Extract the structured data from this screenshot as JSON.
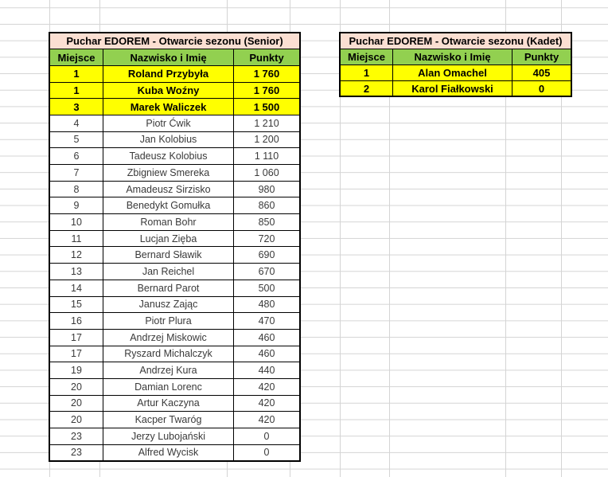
{
  "colors": {
    "title_bg": "#fbdfd2",
    "header_bg": "#92d050",
    "highlight_bg": "#ffff00",
    "border_color": "#000000",
    "gridline_color": "#d4d4d4",
    "text_normal": "#3a3a3a",
    "text_bold": "#000000"
  },
  "tables": [
    {
      "id": "senior",
      "title": "Puchar EDOREM - Otwarcie sezonu (Senior)",
      "columns": [
        "Miejsce",
        "Nazwisko i Imię",
        "Punkty"
      ],
      "rows": [
        {
          "place": "1",
          "name": "Roland Przybyła",
          "points": "1 760",
          "highlight": true
        },
        {
          "place": "1",
          "name": "Kuba Woźny",
          "points": "1 760",
          "highlight": true
        },
        {
          "place": "3",
          "name": "Marek Waliczek",
          "points": "1 500",
          "highlight": true
        },
        {
          "place": "4",
          "name": "Piotr Ćwik",
          "points": "1 210",
          "highlight": false
        },
        {
          "place": "5",
          "name": "Jan Kolobius",
          "points": "1 200",
          "highlight": false
        },
        {
          "place": "6",
          "name": "Tadeusz Kolobius",
          "points": "1 110",
          "highlight": false
        },
        {
          "place": "7",
          "name": "Zbigniew Smereka",
          "points": "1 060",
          "highlight": false
        },
        {
          "place": "8",
          "name": "Amadeusz Sirzisko",
          "points": "980",
          "highlight": false
        },
        {
          "place": "9",
          "name": "Benedykt Gomułka",
          "points": "860",
          "highlight": false
        },
        {
          "place": "10",
          "name": "Roman Bohr",
          "points": "850",
          "highlight": false
        },
        {
          "place": "11",
          "name": "Lucjan Zięba",
          "points": "720",
          "highlight": false
        },
        {
          "place": "12",
          "name": "Bernard Sławik",
          "points": "690",
          "highlight": false
        },
        {
          "place": "13",
          "name": "Jan Reichel",
          "points": "670",
          "highlight": false
        },
        {
          "place": "14",
          "name": "Bernard Parot",
          "points": "500",
          "highlight": false
        },
        {
          "place": "15",
          "name": "Janusz Zając",
          "points": "480",
          "highlight": false
        },
        {
          "place": "16",
          "name": "Piotr Plura",
          "points": "470",
          "highlight": false
        },
        {
          "place": "17",
          "name": "Andrzej Miskowic",
          "points": "460",
          "highlight": false
        },
        {
          "place": "17",
          "name": "Ryszard Michalczyk",
          "points": "460",
          "highlight": false
        },
        {
          "place": "19",
          "name": "Andrzej Kura",
          "points": "440",
          "highlight": false
        },
        {
          "place": "20",
          "name": "Damian Lorenc",
          "points": "420",
          "highlight": false
        },
        {
          "place": "20",
          "name": "Artur Kaczyna",
          "points": "420",
          "highlight": false
        },
        {
          "place": "20",
          "name": "Kacper Twaróg",
          "points": "420",
          "highlight": false
        },
        {
          "place": "23",
          "name": "Jerzy Lubojański",
          "points": "0",
          "highlight": false
        },
        {
          "place": "23",
          "name": "Alfred Wycisk",
          "points": "0",
          "highlight": false
        }
      ]
    },
    {
      "id": "kadet",
      "title": "Puchar EDOREM - Otwarcie sezonu (Kadet)",
      "columns": [
        "Miejsce",
        "Nazwisko i Imię",
        "Punkty"
      ],
      "rows": [
        {
          "place": "1",
          "name": "Alan Omachel",
          "points": "405",
          "highlight": true
        },
        {
          "place": "2",
          "name": "Karol Fiałkowski",
          "points": "0",
          "highlight": true
        }
      ]
    }
  ]
}
